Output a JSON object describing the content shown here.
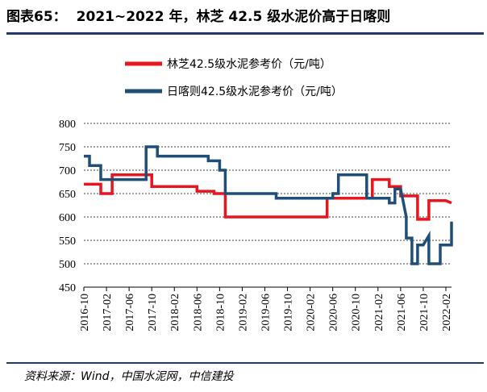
{
  "header": {
    "label": "图表65：",
    "text": "2021~2022 年，林芝 42.5 级水泥价高于日喀则"
  },
  "source": "资料来源：Wind，中国水泥网，中信建投",
  "chart_data": {
    "type": "line",
    "ylim": [
      450,
      800
    ],
    "yticks": [
      450,
      500,
      550,
      600,
      650,
      700,
      750,
      800
    ],
    "xticks": [
      "2016-10",
      "2017-02",
      "2017-06",
      "2017-10",
      "2018-02",
      "2018-06",
      "2018-10",
      "2019-02",
      "2019-06",
      "2019-10",
      "2020-02",
      "2020-06",
      "2020-10",
      "2021-02",
      "2021-06",
      "2021-10",
      "2022-02"
    ],
    "x_range": [
      "2016-10",
      "2022-03"
    ],
    "legend_position": "top-center",
    "series": [
      {
        "name": "林芝42.5级水泥参考价（元/吨）",
        "color": "#e8141e",
        "points": [
          [
            "2016-10",
            670
          ],
          [
            "2017-01",
            670
          ],
          [
            "2017-01",
            650
          ],
          [
            "2017-03",
            650
          ],
          [
            "2017-03",
            690
          ],
          [
            "2017-10",
            690
          ],
          [
            "2017-10",
            665
          ],
          [
            "2018-06",
            665
          ],
          [
            "2018-06",
            655
          ],
          [
            "2018-09",
            655
          ],
          [
            "2018-09",
            650
          ],
          [
            "2018-11",
            650
          ],
          [
            "2018-11",
            600
          ],
          [
            "2020-05",
            600
          ],
          [
            "2020-05",
            640
          ],
          [
            "2021-01",
            640
          ],
          [
            "2021-01",
            680
          ],
          [
            "2021-04",
            680
          ],
          [
            "2021-04",
            665
          ],
          [
            "2021-06",
            665
          ],
          [
            "2021-06",
            645
          ],
          [
            "2021-09",
            645
          ],
          [
            "2021-09",
            595
          ],
          [
            "2021-11",
            595
          ],
          [
            "2021-11",
            635
          ],
          [
            "2022-02",
            635
          ],
          [
            "2022-03",
            630
          ]
        ]
      },
      {
        "name": "日喀则42.5级水泥参考价（元/吨）",
        "color": "#1f4e79",
        "points": [
          [
            "2016-10",
            730
          ],
          [
            "2016-11",
            730
          ],
          [
            "2016-11",
            710
          ],
          [
            "2017-01",
            710
          ],
          [
            "2017-01",
            680
          ],
          [
            "2017-09",
            680
          ],
          [
            "2017-09",
            750
          ],
          [
            "2017-11",
            750
          ],
          [
            "2017-11",
            730
          ],
          [
            "2018-08",
            730
          ],
          [
            "2018-08",
            720
          ],
          [
            "2018-10",
            720
          ],
          [
            "2018-10",
            700
          ],
          [
            "2018-11",
            700
          ],
          [
            "2018-11",
            650
          ],
          [
            "2019-08",
            650
          ],
          [
            "2019-08",
            640
          ],
          [
            "2020-06",
            640
          ],
          [
            "2020-06",
            650
          ],
          [
            "2020-07",
            650
          ],
          [
            "2020-07",
            690
          ],
          [
            "2020-12",
            690
          ],
          [
            "2020-12",
            640
          ],
          [
            "2021-04",
            640
          ],
          [
            "2021-04",
            630
          ],
          [
            "2021-05",
            630
          ],
          [
            "2021-05",
            660
          ],
          [
            "2021-06",
            660
          ],
          [
            "2021-07",
            600
          ],
          [
            "2021-07",
            555
          ],
          [
            "2021-08",
            555
          ],
          [
            "2021-08",
            500
          ],
          [
            "2021-09",
            500
          ],
          [
            "2021-09",
            540
          ],
          [
            "2021-10",
            540
          ],
          [
            "2021-11",
            560
          ],
          [
            "2021-11",
            500
          ],
          [
            "2022-01",
            500
          ],
          [
            "2022-01",
            540
          ],
          [
            "2022-03",
            540
          ],
          [
            "2022-03",
            590
          ]
        ]
      }
    ]
  }
}
